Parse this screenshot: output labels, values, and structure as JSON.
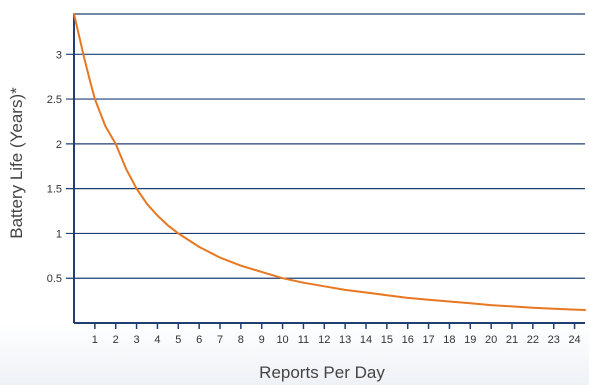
{
  "chart_data": {
    "type": "line",
    "xlabel": "Reports Per Day",
    "ylabel": "Battery Life (Years)*",
    "xlim": [
      0,
      24.5
    ],
    "ylim": [
      0,
      3.45
    ],
    "x_ticks": [
      1,
      2,
      3,
      4,
      5,
      6,
      7,
      8,
      9,
      10,
      11,
      12,
      13,
      14,
      15,
      16,
      17,
      18,
      19,
      20,
      21,
      22,
      23,
      24
    ],
    "y_ticks": [
      {
        "value": 0.5,
        "label": "0.5"
      },
      {
        "value": 1,
        "label": "1"
      },
      {
        "value": 1.5,
        "label": "1.5"
      },
      {
        "value": 2,
        "label": "2"
      },
      {
        "value": 2.5,
        "label": "2.5"
      },
      {
        "value": 3,
        "label": "3"
      }
    ],
    "grid": "horizontal",
    "series": [
      {
        "color": "#e87722",
        "points": [
          [
            0,
            3.45
          ],
          [
            0.25,
            3.2
          ],
          [
            0.5,
            2.95
          ],
          [
            0.75,
            2.72
          ],
          [
            1,
            2.5
          ],
          [
            1.5,
            2.2
          ],
          [
            2,
            2.0
          ],
          [
            2.5,
            1.72
          ],
          [
            3,
            1.5
          ],
          [
            3.5,
            1.33
          ],
          [
            4,
            1.2
          ],
          [
            4.5,
            1.09
          ],
          [
            5,
            1.0
          ],
          [
            6,
            0.85
          ],
          [
            7,
            0.73
          ],
          [
            8,
            0.64
          ],
          [
            9,
            0.57
          ],
          [
            10,
            0.5
          ],
          [
            11,
            0.45
          ],
          [
            12,
            0.41
          ],
          [
            13,
            0.37
          ],
          [
            14,
            0.34
          ],
          [
            15,
            0.31
          ],
          [
            16,
            0.28
          ],
          [
            17,
            0.26
          ],
          [
            18,
            0.24
          ],
          [
            19,
            0.22
          ],
          [
            20,
            0.2
          ],
          [
            21,
            0.185
          ],
          [
            22,
            0.17
          ],
          [
            23,
            0.16
          ],
          [
            24,
            0.15
          ],
          [
            24.5,
            0.145
          ]
        ]
      }
    ],
    "colors": {
      "gridline": "#1f3f73",
      "axis": "#1f3f73",
      "tick_text": "#333333",
      "curve": "#e87722"
    }
  }
}
